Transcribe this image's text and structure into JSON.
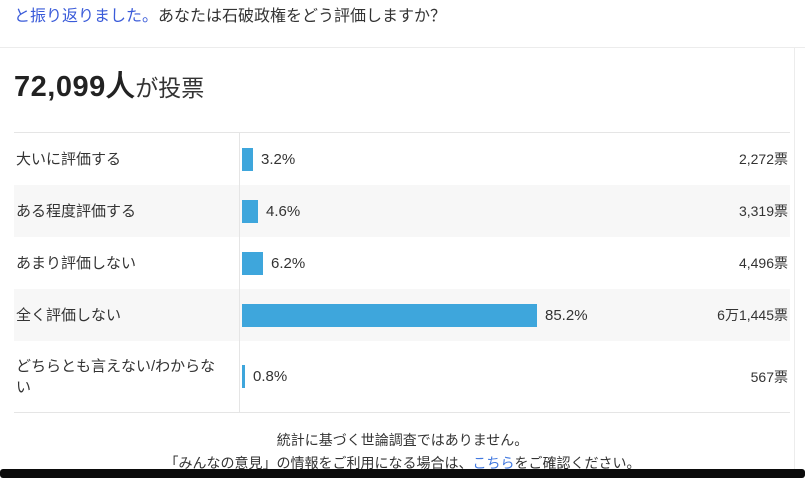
{
  "intro": {
    "link_text": "と振り返りました。",
    "question": "あなたは石破政権をどう評価しますか？"
  },
  "poll_header": {
    "count": "72,099人",
    "suffix": "が投票"
  },
  "chart_data": {
    "type": "bar",
    "orientation": "horizontal",
    "title": "あなたは石破政権をどう評価しますか？",
    "total_votes_label": "72,099人が投票",
    "categories": [
      "大いに評価する",
      "ある程度評価する",
      "あまり評価しない",
      "全く評価しない",
      "どちらとも言えない/わからない"
    ],
    "values": [
      3.2,
      4.6,
      6.2,
      85.2,
      0.8
    ],
    "value_labels": [
      "3.2%",
      "4.6%",
      "6.2%",
      "85.2%",
      "0.8%"
    ],
    "vote_labels": [
      "2,272票",
      "3,319票",
      "4,496票",
      "6万1,445票",
      "567票"
    ],
    "xlim": [
      0,
      100
    ],
    "legend": "off",
    "grid": "off"
  },
  "footer": {
    "line1": "統計に基づく世論調査ではありません。",
    "line2_prefix": "「みんなの意見」の情報をご利用になる場合は、",
    "link_text": "こちら",
    "line2_suffix": "をご確認ください。"
  },
  "colors": {
    "bar": "#3ea6dc",
    "intro_link": "#3a5bd9",
    "footer_link": "#4279e0"
  }
}
